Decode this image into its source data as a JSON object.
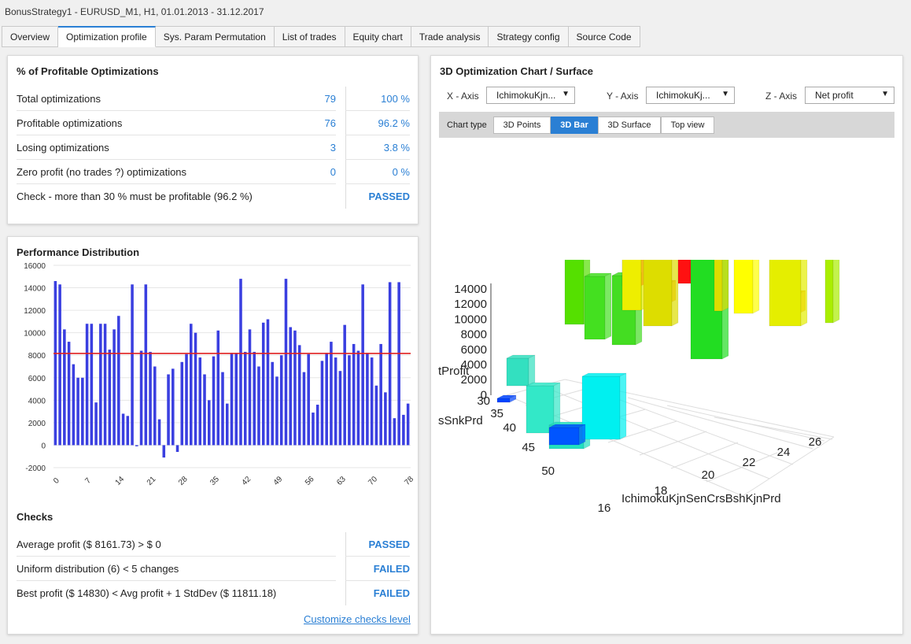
{
  "window": {
    "title": "BonusStrategy1 - EURUSD_M1, H1, 01.01.2013 - 31.12.2017"
  },
  "tabs": [
    {
      "label": "Overview"
    },
    {
      "label": "Optimization profile"
    },
    {
      "label": "Sys. Param Permutation"
    },
    {
      "label": "List of trades"
    },
    {
      "label": "Equity chart"
    },
    {
      "label": "Trade analysis"
    },
    {
      "label": "Strategy config"
    },
    {
      "label": "Source Code"
    }
  ],
  "profitable": {
    "title": "% of Profitable Optimizations",
    "rows": [
      {
        "label": "Total optimizations",
        "value": "79",
        "pct": "100 %"
      },
      {
        "label": "Profitable optimizations",
        "value": "76",
        "pct": "96.2 %"
      },
      {
        "label": "Losing optimizations",
        "value": "3",
        "pct": "3.8 %"
      },
      {
        "label": "Zero profit (no trades ?) optimizations",
        "value": "0",
        "pct": "0 %"
      }
    ],
    "check": {
      "label": "Check - more than 30 % must be profitable (96.2 %)",
      "result": "PASSED"
    }
  },
  "performance": {
    "title": "Performance Distribution"
  },
  "checks": {
    "title": "Checks",
    "rows": [
      {
        "label": "Average profit ($ 8161.73) > $ 0",
        "result": "PASSED"
      },
      {
        "label": "Uniform distribution (6) < 5 changes",
        "result": "FAILED"
      },
      {
        "label": "Best profit ($ 14830) < Avg profit + 1 StdDev ($ 11811.18)",
        "result": "FAILED"
      }
    ],
    "link": "Customize checks level"
  },
  "chart3d": {
    "title": "3D Optimization Chart / Surface",
    "x_axis_label": "X - Axis",
    "x_axis_value": "IchimokuKjn...",
    "y_axis_label": "Y - Axis",
    "y_axis_value": "IchimokuKj...",
    "z_axis_label": "Z - Axis",
    "z_axis_value": "Net profit",
    "chart_type_label": "Chart type",
    "chart_types": [
      "3D Points",
      "3D Bar",
      "3D Surface",
      "Top view"
    ],
    "active_chart_type": "3D Bar",
    "z_ticks": [
      "14000",
      "12000",
      "10000",
      "8000",
      "6000",
      "4000",
      "2000",
      "0"
    ],
    "z_title": "tProfit",
    "y_title": "sSnkPrd",
    "y_ticks": [
      "30",
      "35",
      "40",
      "45",
      "50"
    ],
    "x_title": "IchimokuKjnSenCrsBshKjnPrd",
    "x_ticks": [
      "16",
      "18",
      "20",
      "22",
      "24",
      "26"
    ]
  },
  "chart_data": {
    "type": "bar",
    "title": "Performance Distribution",
    "average_line": 8161.73,
    "ylim": [
      -2000,
      16000
    ],
    "y_ticks": [
      16000,
      14000,
      12000,
      10000,
      8000,
      6000,
      4000,
      2000,
      0,
      -2000
    ],
    "x_ticks": [
      0,
      7,
      14,
      21,
      28,
      35,
      42,
      49,
      56,
      63,
      70,
      78
    ],
    "values": [
      14600,
      14300,
      10300,
      9200,
      7200,
      6000,
      6000,
      10800,
      10800,
      3800,
      10800,
      10800,
      8500,
      10300,
      11500,
      2800,
      2600,
      14300,
      -100,
      8400,
      14300,
      8300,
      7000,
      2300,
      -1100,
      6300,
      6800,
      -600,
      7400,
      8100,
      10800,
      10000,
      7800,
      6300,
      4000,
      7900,
      10200,
      6500,
      3700,
      8200,
      8200,
      14800,
      8300,
      10300,
      8300,
      7000,
      10900,
      11200,
      7400,
      6100,
      8000,
      14800,
      10500,
      10200,
      8900,
      6500,
      8100,
      2900,
      3600,
      7500,
      8200,
      9200,
      7800,
      6600,
      10700,
      8000,
      9000,
      8400,
      14300,
      8200,
      7800,
      5300,
      9000,
      4700,
      14500,
      2400,
      14500,
      2700,
      3700
    ]
  }
}
